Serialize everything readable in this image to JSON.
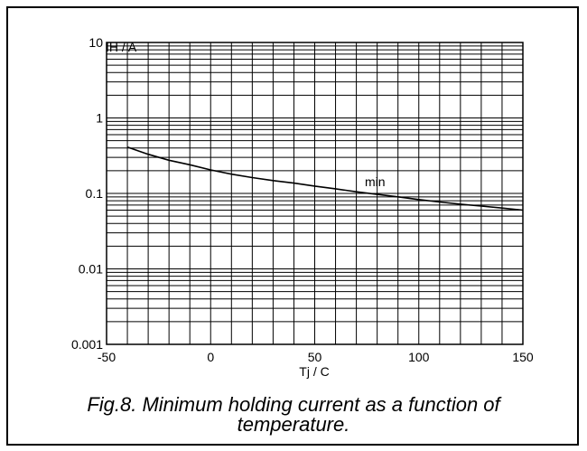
{
  "chart_data": {
    "type": "line",
    "y_scale": "log",
    "xlim": [
      -50,
      150
    ],
    "ylim": [
      0.001,
      10
    ],
    "xlabel": "Tj / C",
    "ylabel": "IH / A",
    "x_ticks": [
      "-50",
      "0",
      "50",
      "100",
      "150"
    ],
    "x_tick_values": [
      -50,
      0,
      50,
      100,
      150
    ],
    "y_ticks": [
      "0.001",
      "0.01",
      "0.1",
      "1",
      "10"
    ],
    "y_tick_values": [
      0.001,
      0.01,
      0.1,
      1,
      10
    ],
    "grid": true,
    "series": [
      {
        "name": "min",
        "x": [
          -40,
          -30,
          -20,
          -10,
          0,
          10,
          20,
          30,
          40,
          50,
          60,
          70,
          80,
          90,
          100,
          110,
          120,
          130,
          140,
          150
        ],
        "y": [
          0.41,
          0.33,
          0.275,
          0.24,
          0.205,
          0.18,
          0.162,
          0.148,
          0.137,
          0.125,
          0.115,
          0.105,
          0.097,
          0.09,
          0.083,
          0.077,
          0.072,
          0.068,
          0.064,
          0.06
        ]
      }
    ]
  },
  "caption": {
    "line1": "Fig.8.   Minimum holding current as a function of",
    "line2": "temperature."
  }
}
